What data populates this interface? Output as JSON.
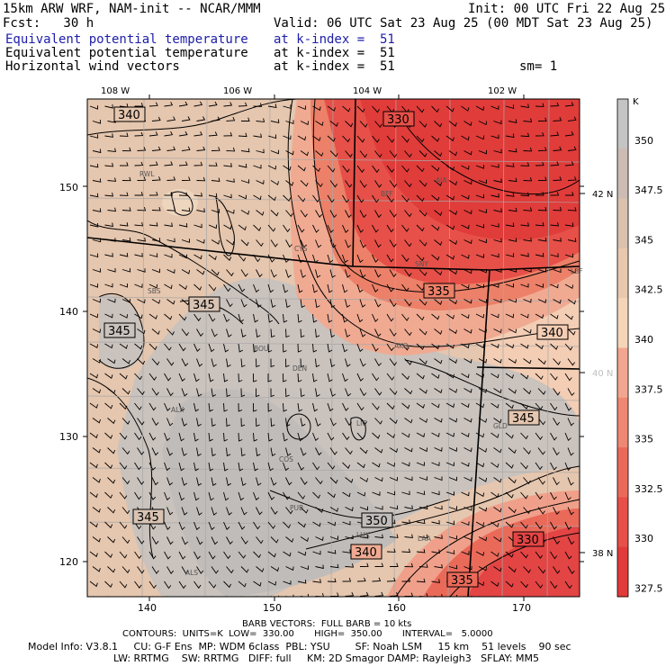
{
  "header": {
    "model": "15km ARW WRF, NAM-init -- NCAR/MMM",
    "init": "Init: 00 UTC Fri 22 Aug 25",
    "fcst": "Fcst:   30 h",
    "valid": "Valid: 06 UTC Sat 23 Aug 25 (00 MDT Sat 23 Aug 25)",
    "lines": [
      {
        "left": "Equivalent potential temperature",
        "right": "at k-index =  51",
        "highlight": true
      },
      {
        "left": "Equivalent potential temperature",
        "right": "at k-index =  51",
        "highlight": false
      },
      {
        "left": "Horizontal wind vectors",
        "right": "at k-index =  51",
        "highlight": false
      }
    ],
    "smoothing": "sm= 1"
  },
  "map": {
    "top_lon_labels": [
      "108 W",
      "106 W",
      "104 W",
      "102 W"
    ],
    "right_lat_labels": [
      "42 N",
      "40 N",
      "38 N"
    ],
    "left_ticks": [
      "150",
      "140",
      "130",
      "120"
    ],
    "bottom_ticks": [
      "140",
      "150",
      "160",
      "170"
    ],
    "stations": [
      "RWL",
      "BFF",
      "AIA",
      "CYS",
      "SNY",
      "LBF",
      "SBS",
      "BOU",
      "AKO",
      "DEN",
      "ALX",
      "LIC",
      "GLD",
      "COS",
      "PUB",
      "LHX",
      "LAA",
      "ALS"
    ],
    "contour_labels": [
      "340",
      "330",
      "345",
      "335",
      "345",
      "340",
      "345",
      "345",
      "350",
      "340",
      "330",
      "335"
    ]
  },
  "colorbar": {
    "unit": "K",
    "labels": [
      "350",
      "347.5",
      "345",
      "342.5",
      "340",
      "337.5",
      "335",
      "332.5",
      "330",
      "327.5"
    ],
    "colors": [
      "#c4c4c4",
      "#cdbcb4",
      "#dbc2ae",
      "#e9c9ae",
      "#f5d5b8",
      "#f2a690",
      "#ee8872",
      "#ea6a5a",
      "#e65048",
      "#e23a3a"
    ]
  },
  "footer": {
    "barb": "BARB VECTORS:  FULL BARB = 10 kts",
    "contours": "CONTOURS:  UNITS=K  LOW=  330.00       HIGH=  350.00       INTERVAL=   5.0000",
    "model_info_1": "Model Info: V3.8.1     CU: G-F Ens  MP: WDM 6class  PBL: YSU        SF: Noah LSM     15 km    51 levels    90 sec",
    "model_info_2": "LW: RRTMG    SW: RRTMG   DIFF: full     KM: 2D Smagor DAMP: Rayleigh3   SFLAY: MM5"
  }
}
